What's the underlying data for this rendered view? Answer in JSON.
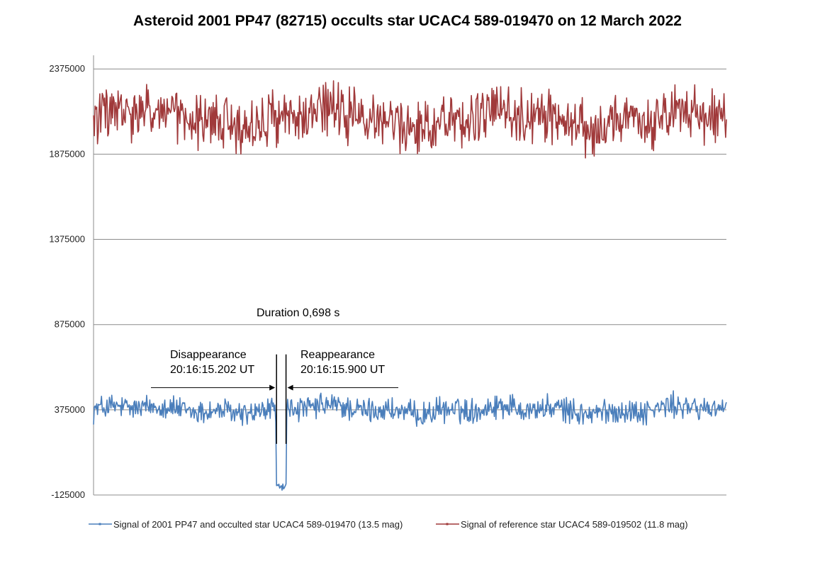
{
  "chart_data": {
    "type": "line",
    "title": "Asteroid 2001 PP47 (82715) occults star UCAC4 589-019470 on 12 March 2022",
    "ylim": [
      -125000,
      2455000
    ],
    "y_ticks": [
      -125000,
      375000,
      875000,
      1375000,
      1875000,
      2375000
    ],
    "y_tick_labels": [
      "-125000",
      "375000",
      "875000",
      "1375000",
      "1875000",
      "2375000"
    ],
    "grid": "horizontal",
    "legend_position": "bottom",
    "n_samples": 800,
    "series": [
      {
        "name": "Signal of 2001 PP47 and occulted star UCAC4 589-019470 (13.5 mag)",
        "color": "#4a7ebb",
        "baseline": 375000,
        "noise_amplitude": 70000,
        "dip": {
          "start_index": 231,
          "end_index": 243,
          "value": -80000
        }
      },
      {
        "name": "Signal of reference star UCAC4 589-019502 (11.8 mag)",
        "color": "#a0393a",
        "baseline": 2080000,
        "noise_amplitude": 150000
      }
    ],
    "annotations": {
      "duration": "Duration 0,698 s",
      "disappearance_label": "Disappearance",
      "disappearance_time": "20:16:15.202 UT",
      "disappearance_index": 231,
      "reappearance_label": "Reappearance",
      "reappearance_time": "20:16:15.900 UT",
      "reappearance_index": 243
    }
  }
}
